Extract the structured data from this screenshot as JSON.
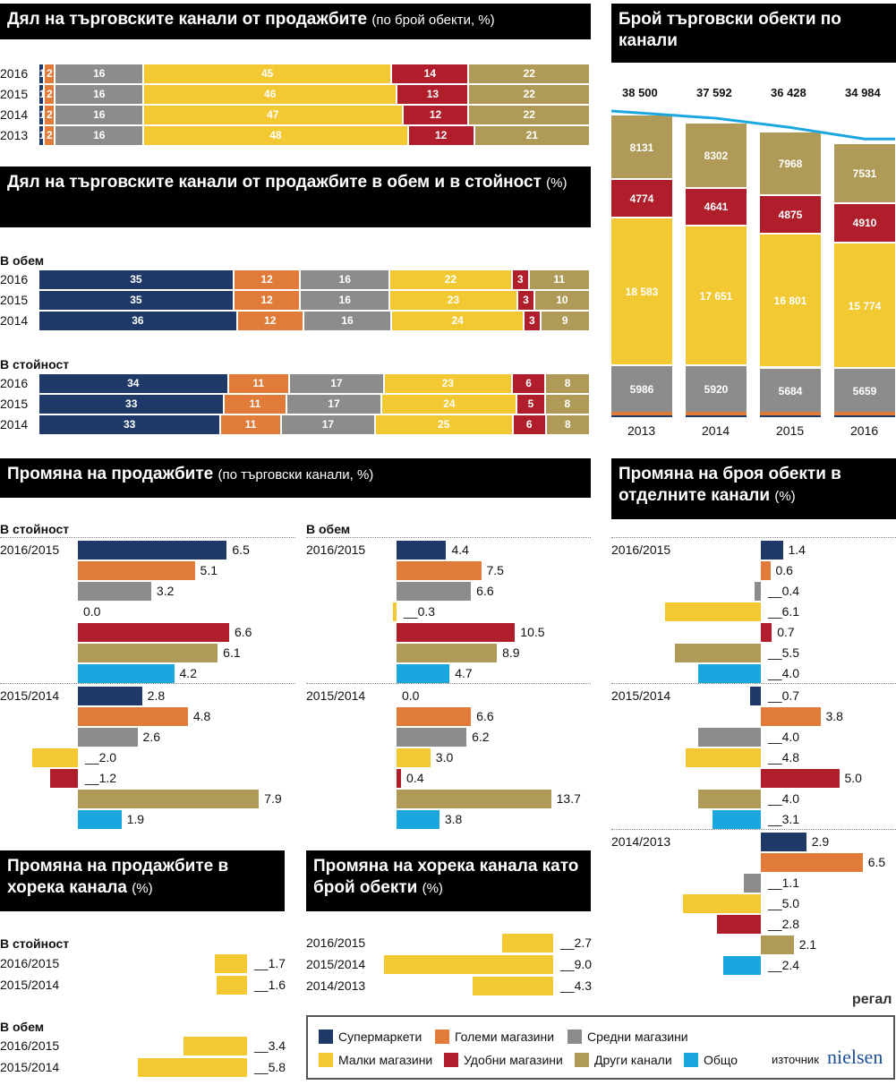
{
  "colors": {
    "super": "#1f3a68",
    "large": "#e07b39",
    "medium": "#8c8c8c",
    "small": "#f2c933",
    "conv": "#b01e2b",
    "other": "#b09a58",
    "total": "#1aa7e0"
  },
  "legend": [
    {
      "key": "super",
      "label": "Супермаркети"
    },
    {
      "key": "large",
      "label": "Големи магазини"
    },
    {
      "key": "medium",
      "label": "Средни магазини"
    },
    {
      "key": "small",
      "label": "Малки магазини"
    },
    {
      "key": "conv",
      "label": "Удобни магазини"
    },
    {
      "key": "other",
      "label": "Други канали"
    },
    {
      "key": "total",
      "label": "Общо"
    }
  ],
  "source_label": "източник",
  "source_brand": "nielsen",
  "publisher": "регал",
  "panels": {
    "p1": {
      "title": "Дял на търговските канали от продажбите",
      "subtitle": "(по брой обекти, %)"
    },
    "p2": {
      "title": "Дял на търговските канали от продажбите в обем и в стойност",
      "subtitle": "(%)",
      "volume_label": "В обем",
      "value_label": "В стойност"
    },
    "p3": {
      "title": "Брой търговски обекти по канали"
    },
    "p4": {
      "title": "Промяна на продажбите",
      "subtitle": "(по търговски канали, %)",
      "value_label": "В стойност",
      "volume_label": "В обем"
    },
    "p5": {
      "title": "Промяна на броя обекти в отделните канали",
      "subtitle": "(%)"
    },
    "p6": {
      "title": "Промяна на продажбите в хорека канала",
      "subtitle": "(%)",
      "value_label": "В стойност",
      "volume_label": "В обем"
    },
    "p7": {
      "title": "Промяна на хорека канала като брой обекти",
      "subtitle": "(%)"
    }
  },
  "chart_data": [
    {
      "id": "outlets_share",
      "type": "bar",
      "stacked": true,
      "orientation": "horizontal",
      "title": "Дял на търговските канали от продажбите (по брой обекти, %)",
      "categories": [
        "2016",
        "2015",
        "2014",
        "2013"
      ],
      "series": [
        {
          "name": "Супермаркети",
          "key": "super",
          "values": [
            1,
            1,
            1,
            1
          ]
        },
        {
          "name": "Големи магазини",
          "key": "large",
          "values": [
            2,
            2,
            2,
            2
          ]
        },
        {
          "name": "Средни магазини",
          "key": "medium",
          "values": [
            16,
            16,
            16,
            16
          ]
        },
        {
          "name": "Малки магазини",
          "key": "small",
          "values": [
            45,
            46,
            47,
            48
          ]
        },
        {
          "name": "Удобни магазини",
          "key": "conv",
          "values": [
            14,
            13,
            12,
            12
          ]
        },
        {
          "name": "Други канали",
          "key": "other",
          "values": [
            22,
            22,
            22,
            21
          ]
        }
      ]
    },
    {
      "id": "volume_share",
      "type": "bar",
      "stacked": true,
      "orientation": "horizontal",
      "group": "В обем",
      "categories": [
        "2016",
        "2015",
        "2014"
      ],
      "series": [
        {
          "name": "Супермаркети",
          "key": "super",
          "values": [
            35,
            35,
            36
          ]
        },
        {
          "name": "Големи магазини",
          "key": "large",
          "values": [
            12,
            12,
            12
          ]
        },
        {
          "name": "Средни магазини",
          "key": "medium",
          "values": [
            16,
            16,
            16
          ]
        },
        {
          "name": "Малки магазини",
          "key": "small",
          "values": [
            22,
            23,
            24
          ]
        },
        {
          "name": "Удобни магазини",
          "key": "conv",
          "values": [
            3,
            3,
            3
          ]
        },
        {
          "name": "Други канали",
          "key": "other",
          "values": [
            11,
            10,
            9
          ]
        }
      ]
    },
    {
      "id": "value_share",
      "type": "bar",
      "stacked": true,
      "orientation": "horizontal",
      "group": "В стойност",
      "categories": [
        "2016",
        "2015",
        "2014"
      ],
      "series": [
        {
          "name": "Супермаркети",
          "key": "super",
          "values": [
            34,
            33,
            33
          ]
        },
        {
          "name": "Големи магазини",
          "key": "large",
          "values": [
            11,
            11,
            11
          ]
        },
        {
          "name": "Средни магазини",
          "key": "medium",
          "values": [
            17,
            17,
            17
          ]
        },
        {
          "name": "Малки магазини",
          "key": "small",
          "values": [
            23,
            24,
            25
          ]
        },
        {
          "name": "Удобни магазини",
          "key": "conv",
          "values": [
            6,
            5,
            6
          ]
        },
        {
          "name": "Други канали",
          "key": "other",
          "values": [
            8,
            8,
            8
          ]
        }
      ]
    },
    {
      "id": "outlet_counts",
      "type": "bar",
      "stacked": true,
      "orientation": "vertical",
      "title": "Брой търговски обекти по канали",
      "categories": [
        "2013",
        "2014",
        "2015",
        "2016"
      ],
      "totals": [
        38500,
        37592,
        36428,
        34984
      ],
      "total_labels": [
        "38 500",
        "37 592",
        "36 428",
        "34 984"
      ],
      "series": [
        {
          "name": "Супермаркети",
          "key": "super",
          "values": [
            null,
            null,
            null,
            null
          ]
        },
        {
          "name": "Големи магазини",
          "key": "large",
          "values": [
            null,
            null,
            null,
            null
          ]
        },
        {
          "name": "Средни магазини",
          "key": "medium",
          "values": [
            5986,
            5920,
            5684,
            5659
          ],
          "labels": [
            "5986",
            "5920",
            "5684",
            "5659"
          ]
        },
        {
          "name": "Малки магазини",
          "key": "small",
          "values": [
            18583,
            17651,
            16801,
            15774
          ],
          "labels": [
            "18 583",
            "17 651",
            "16 801",
            "15 774"
          ]
        },
        {
          "name": "Удобни магазини",
          "key": "conv",
          "values": [
            4774,
            4641,
            4875,
            4910
          ],
          "labels": [
            "4774",
            "4641",
            "4875",
            "4910"
          ]
        },
        {
          "name": "Други канали",
          "key": "other",
          "values": [
            8131,
            8302,
            7968,
            7531
          ],
          "labels": [
            "8131",
            "8302",
            "7968",
            "7531"
          ]
        }
      ]
    },
    {
      "id": "sales_change_value",
      "type": "bar",
      "orientation": "horizontal",
      "group": "В стойност",
      "periods": [
        {
          "label": "2016/2015",
          "values": [
            6.5,
            5.1,
            3.2,
            0.0,
            6.6,
            6.1,
            4.2
          ]
        },
        {
          "label": "2015/2014",
          "values": [
            2.8,
            4.8,
            2.6,
            -2.0,
            -1.2,
            7.9,
            1.9
          ]
        }
      ],
      "series_keys": [
        "super",
        "large",
        "medium",
        "small",
        "conv",
        "other",
        "total"
      ]
    },
    {
      "id": "sales_change_volume",
      "type": "bar",
      "orientation": "horizontal",
      "group": "В обем",
      "periods": [
        {
          "label": "2016/2015",
          "values": [
            4.4,
            7.5,
            6.6,
            -0.3,
            10.5,
            8.9,
            4.7
          ]
        },
        {
          "label": "2015/2014",
          "values": [
            0.0,
            6.6,
            6.2,
            3.0,
            0.4,
            13.7,
            3.8
          ]
        }
      ],
      "series_keys": [
        "super",
        "large",
        "medium",
        "small",
        "conv",
        "other",
        "total"
      ]
    },
    {
      "id": "outlets_change",
      "type": "bar",
      "orientation": "horizontal",
      "title": "Промяна на броя обекти в отделните канали (%)",
      "periods": [
        {
          "label": "2016/2015",
          "values": [
            1.4,
            0.6,
            -0.4,
            -6.1,
            0.7,
            -5.5,
            -4.0
          ]
        },
        {
          "label": "2015/2014",
          "values": [
            -0.7,
            3.8,
            -4.0,
            -4.8,
            5.0,
            -4.0,
            -3.1
          ]
        },
        {
          "label": "2014/2013",
          "values": [
            2.9,
            6.5,
            -1.1,
            -5.0,
            -2.8,
            2.1,
            -2.4
          ]
        }
      ],
      "series_keys": [
        "super",
        "large",
        "medium",
        "small",
        "conv",
        "other",
        "total"
      ]
    },
    {
      "id": "horeca_sales_change",
      "type": "bar",
      "orientation": "horizontal",
      "groups": [
        {
          "label": "В стойност",
          "rows": [
            {
              "label": "2016/2015",
              "value": -1.7
            },
            {
              "label": "2015/2014",
              "value": -1.6
            }
          ]
        },
        {
          "label": "В обем",
          "rows": [
            {
              "label": "2016/2015",
              "value": -3.4
            },
            {
              "label": "2015/2014",
              "value": -5.8
            }
          ]
        }
      ]
    },
    {
      "id": "horeca_outlets_change",
      "type": "bar",
      "orientation": "horizontal",
      "rows": [
        {
          "label": "2016/2015",
          "value": -2.7
        },
        {
          "label": "2015/2014",
          "value": -9.0
        },
        {
          "label": "2014/2013",
          "value": -4.3
        }
      ]
    }
  ]
}
